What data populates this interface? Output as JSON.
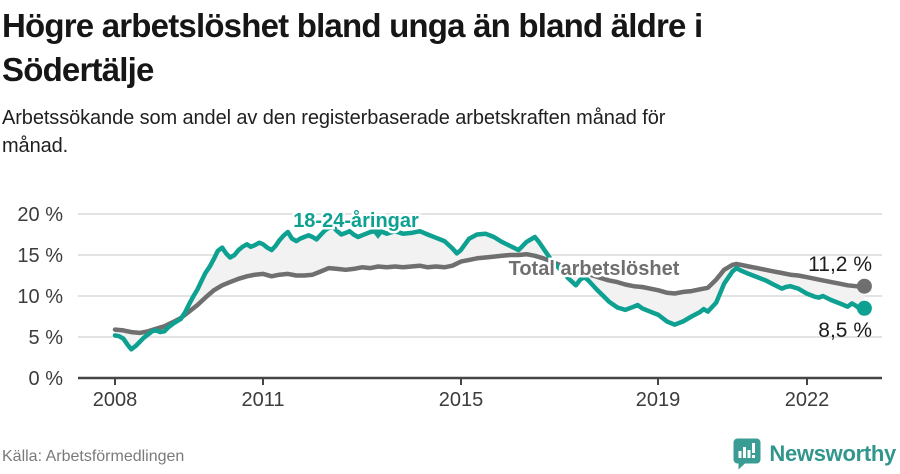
{
  "header": {
    "title_lines": [
      "Högre arbetslöshet bland unga än bland äldre i",
      "Södertälje"
    ],
    "subtitle_lines": [
      "Arbetssökande som andel av den registerbaserade arbetskraften månad för",
      "månad."
    ]
  },
  "footer": {
    "source": "Källa: Arbetsförmedlingen",
    "brand": "Newsworthy"
  },
  "colors": {
    "young_teal": "#0ea192",
    "total_gray": "#6f6f6f",
    "band_fill": "#f2f2f2",
    "grid": "#e3e3e3",
    "axis": "#454545",
    "logo_teal": "#3a9d94",
    "brand_text_teal": "#32968c"
  },
  "chart_data": {
    "type": "line",
    "title": "Högre arbetslöshet bland unga än bland äldre i Södertälje",
    "subtitle": "Arbetssökande som andel av den registerbaserade arbetskraften månad för månad.",
    "xlabel": "",
    "ylabel": "",
    "grid": true,
    "legend_position": "inline-labels",
    "x_axis": {
      "tick_values": [
        2008,
        2011,
        2015,
        2019,
        2022
      ],
      "tick_labels": [
        "2008",
        "2011",
        "2015",
        "2019",
        "2022"
      ],
      "range": [
        2007.25,
        2023.55
      ]
    },
    "y_axis": {
      "tick_values": [
        0,
        5,
        10,
        15,
        20
      ],
      "tick_labels": [
        "0 %",
        "5 %",
        "10 %",
        "15 %",
        "20 %"
      ],
      "range": [
        0,
        20
      ],
      "unit": "%"
    },
    "band_between_series": true,
    "series": [
      {
        "name": "18-24-åringar",
        "end_label": "8,5 %",
        "end_value": 8.5,
        "color": "#0ea192",
        "points": [
          [
            2008.0,
            5.2
          ],
          [
            2008.08,
            5.1
          ],
          [
            2008.17,
            4.8
          ],
          [
            2008.25,
            4.1
          ],
          [
            2008.33,
            3.5
          ],
          [
            2008.42,
            3.9
          ],
          [
            2008.5,
            4.4
          ],
          [
            2008.58,
            4.9
          ],
          [
            2008.67,
            5.3
          ],
          [
            2008.75,
            5.7
          ],
          [
            2008.83,
            5.8
          ],
          [
            2008.92,
            5.6
          ],
          [
            2009.0,
            5.7
          ],
          [
            2009.08,
            6.2
          ],
          [
            2009.17,
            6.6
          ],
          [
            2009.25,
            6.9
          ],
          [
            2009.33,
            7.2
          ],
          [
            2009.42,
            8.0
          ],
          [
            2009.5,
            9.0
          ],
          [
            2009.58,
            9.9
          ],
          [
            2009.67,
            10.8
          ],
          [
            2009.75,
            11.8
          ],
          [
            2009.83,
            12.8
          ],
          [
            2009.92,
            13.6
          ],
          [
            2010.0,
            14.5
          ],
          [
            2010.08,
            15.5
          ],
          [
            2010.17,
            15.9
          ],
          [
            2010.25,
            15.2
          ],
          [
            2010.33,
            14.7
          ],
          [
            2010.42,
            15.0
          ],
          [
            2010.5,
            15.6
          ],
          [
            2010.58,
            16.0
          ],
          [
            2010.67,
            16.3
          ],
          [
            2010.75,
            16.0
          ],
          [
            2010.83,
            16.2
          ],
          [
            2010.92,
            16.5
          ],
          [
            2011.0,
            16.3
          ],
          [
            2011.08,
            15.9
          ],
          [
            2011.17,
            15.6
          ],
          [
            2011.25,
            16.1
          ],
          [
            2011.33,
            16.8
          ],
          [
            2011.42,
            17.4
          ],
          [
            2011.5,
            17.8
          ],
          [
            2011.58,
            17.0
          ],
          [
            2011.67,
            16.7
          ],
          [
            2011.75,
            17.0
          ],
          [
            2011.83,
            17.2
          ],
          [
            2011.92,
            17.4
          ],
          [
            2012.0,
            17.2
          ],
          [
            2012.08,
            16.9
          ],
          [
            2012.17,
            17.5
          ],
          [
            2012.25,
            18.0
          ],
          [
            2012.33,
            18.3
          ],
          [
            2012.42,
            18.4
          ],
          [
            2012.5,
            17.9
          ],
          [
            2012.58,
            17.5
          ],
          [
            2012.67,
            17.7
          ],
          [
            2012.75,
            17.9
          ],
          [
            2012.83,
            17.5
          ],
          [
            2012.92,
            17.2
          ],
          [
            2013.0,
            17.4
          ],
          [
            2013.17,
            17.8
          ],
          [
            2013.33,
            18.0
          ],
          [
            2013.5,
            17.6
          ],
          [
            2013.67,
            17.9
          ],
          [
            2013.83,
            17.6
          ],
          [
            2014.0,
            17.7
          ],
          [
            2014.17,
            17.9
          ],
          [
            2014.33,
            17.5
          ],
          [
            2014.5,
            17.1
          ],
          [
            2014.67,
            16.7
          ],
          [
            2014.83,
            15.8
          ],
          [
            2014.92,
            15.2
          ],
          [
            2015.0,
            15.6
          ],
          [
            2015.17,
            17.0
          ],
          [
            2015.33,
            17.5
          ],
          [
            2015.5,
            17.6
          ],
          [
            2015.67,
            17.2
          ],
          [
            2015.83,
            16.6
          ],
          [
            2016.0,
            16.1
          ],
          [
            2016.17,
            15.6
          ],
          [
            2016.33,
            16.6
          ],
          [
            2016.5,
            17.2
          ],
          [
            2016.58,
            16.6
          ],
          [
            2016.67,
            15.8
          ],
          [
            2016.83,
            14.4
          ],
          [
            2017.0,
            13.3
          ],
          [
            2017.17,
            12.2
          ],
          [
            2017.33,
            11.3
          ],
          [
            2017.42,
            12.0
          ],
          [
            2017.5,
            12.3
          ],
          [
            2017.58,
            11.9
          ],
          [
            2017.75,
            10.8
          ],
          [
            2017.92,
            9.8
          ],
          [
            2018.0,
            9.3
          ],
          [
            2018.17,
            8.6
          ],
          [
            2018.33,
            8.3
          ],
          [
            2018.5,
            8.7
          ],
          [
            2018.58,
            8.9
          ],
          [
            2018.67,
            8.5
          ],
          [
            2018.83,
            8.1
          ],
          [
            2019.0,
            7.7
          ],
          [
            2019.17,
            6.9
          ],
          [
            2019.33,
            6.5
          ],
          [
            2019.5,
            6.9
          ],
          [
            2019.67,
            7.5
          ],
          [
            2019.83,
            8.0
          ],
          [
            2019.92,
            8.4
          ],
          [
            2020.0,
            8.1
          ],
          [
            2020.17,
            9.2
          ],
          [
            2020.33,
            11.5
          ],
          [
            2020.5,
            13.0
          ],
          [
            2020.58,
            13.4
          ],
          [
            2020.67,
            13.1
          ],
          [
            2020.83,
            12.7
          ],
          [
            2021.0,
            12.3
          ],
          [
            2021.17,
            11.9
          ],
          [
            2021.33,
            11.4
          ],
          [
            2021.5,
            10.9
          ],
          [
            2021.58,
            11.1
          ],
          [
            2021.67,
            11.2
          ],
          [
            2021.83,
            10.9
          ],
          [
            2022.0,
            10.3
          ],
          [
            2022.17,
            9.9
          ],
          [
            2022.25,
            9.8
          ],
          [
            2022.33,
            10.0
          ],
          [
            2022.5,
            9.5
          ],
          [
            2022.67,
            9.1
          ],
          [
            2022.83,
            8.7
          ],
          [
            2022.92,
            9.1
          ],
          [
            2023.0,
            8.8
          ],
          [
            2023.08,
            8.4
          ],
          [
            2023.17,
            8.5
          ]
        ]
      },
      {
        "name": "Total arbetslöshet",
        "end_label": "11,2 %",
        "end_value": 11.2,
        "color": "#6f6f6f",
        "points": [
          [
            2008.0,
            5.9
          ],
          [
            2008.17,
            5.8
          ],
          [
            2008.33,
            5.6
          ],
          [
            2008.5,
            5.5
          ],
          [
            2008.67,
            5.7
          ],
          [
            2008.83,
            6.0
          ],
          [
            2009.0,
            6.3
          ],
          [
            2009.17,
            6.8
          ],
          [
            2009.33,
            7.3
          ],
          [
            2009.5,
            8.1
          ],
          [
            2009.67,
            8.9
          ],
          [
            2009.83,
            9.8
          ],
          [
            2010.0,
            10.7
          ],
          [
            2010.17,
            11.3
          ],
          [
            2010.33,
            11.7
          ],
          [
            2010.5,
            12.1
          ],
          [
            2010.67,
            12.4
          ],
          [
            2010.83,
            12.6
          ],
          [
            2011.0,
            12.7
          ],
          [
            2011.17,
            12.4
          ],
          [
            2011.33,
            12.6
          ],
          [
            2011.5,
            12.7
          ],
          [
            2011.67,
            12.5
          ],
          [
            2011.83,
            12.5
          ],
          [
            2012.0,
            12.6
          ],
          [
            2012.17,
            13.0
          ],
          [
            2012.33,
            13.4
          ],
          [
            2012.5,
            13.3
          ],
          [
            2012.67,
            13.2
          ],
          [
            2012.83,
            13.3
          ],
          [
            2013.0,
            13.5
          ],
          [
            2013.17,
            13.4
          ],
          [
            2013.33,
            13.6
          ],
          [
            2013.5,
            13.5
          ],
          [
            2013.67,
            13.6
          ],
          [
            2013.83,
            13.5
          ],
          [
            2014.0,
            13.6
          ],
          [
            2014.17,
            13.7
          ],
          [
            2014.33,
            13.5
          ],
          [
            2014.5,
            13.6
          ],
          [
            2014.67,
            13.5
          ],
          [
            2014.83,
            13.7
          ],
          [
            2015.0,
            14.2
          ],
          [
            2015.17,
            14.4
          ],
          [
            2015.33,
            14.6
          ],
          [
            2015.5,
            14.7
          ],
          [
            2015.67,
            14.8
          ],
          [
            2015.83,
            14.9
          ],
          [
            2016.0,
            15.0
          ],
          [
            2016.17,
            15.0
          ],
          [
            2016.33,
            15.1
          ],
          [
            2016.5,
            14.9
          ],
          [
            2016.67,
            14.6
          ],
          [
            2016.83,
            14.2
          ],
          [
            2017.0,
            13.8
          ],
          [
            2017.17,
            13.4
          ],
          [
            2017.33,
            13.1
          ],
          [
            2017.5,
            12.8
          ],
          [
            2017.67,
            12.5
          ],
          [
            2017.83,
            12.2
          ],
          [
            2018.0,
            11.9
          ],
          [
            2018.17,
            11.7
          ],
          [
            2018.33,
            11.4
          ],
          [
            2018.5,
            11.2
          ],
          [
            2018.67,
            11.1
          ],
          [
            2018.83,
            10.9
          ],
          [
            2019.0,
            10.7
          ],
          [
            2019.17,
            10.4
          ],
          [
            2019.33,
            10.3
          ],
          [
            2019.5,
            10.5
          ],
          [
            2019.67,
            10.6
          ],
          [
            2019.83,
            10.8
          ],
          [
            2020.0,
            11.0
          ],
          [
            2020.17,
            12.0
          ],
          [
            2020.33,
            13.2
          ],
          [
            2020.5,
            13.8
          ],
          [
            2020.58,
            13.9
          ],
          [
            2020.67,
            13.8
          ],
          [
            2020.83,
            13.6
          ],
          [
            2021.0,
            13.4
          ],
          [
            2021.17,
            13.2
          ],
          [
            2021.33,
            13.0
          ],
          [
            2021.5,
            12.8
          ],
          [
            2021.67,
            12.6
          ],
          [
            2021.83,
            12.5
          ],
          [
            2022.0,
            12.3
          ],
          [
            2022.17,
            12.1
          ],
          [
            2022.33,
            11.9
          ],
          [
            2022.5,
            11.7
          ],
          [
            2022.67,
            11.5
          ],
          [
            2022.83,
            11.3
          ],
          [
            2023.0,
            11.2
          ],
          [
            2023.17,
            11.2
          ]
        ]
      }
    ]
  }
}
